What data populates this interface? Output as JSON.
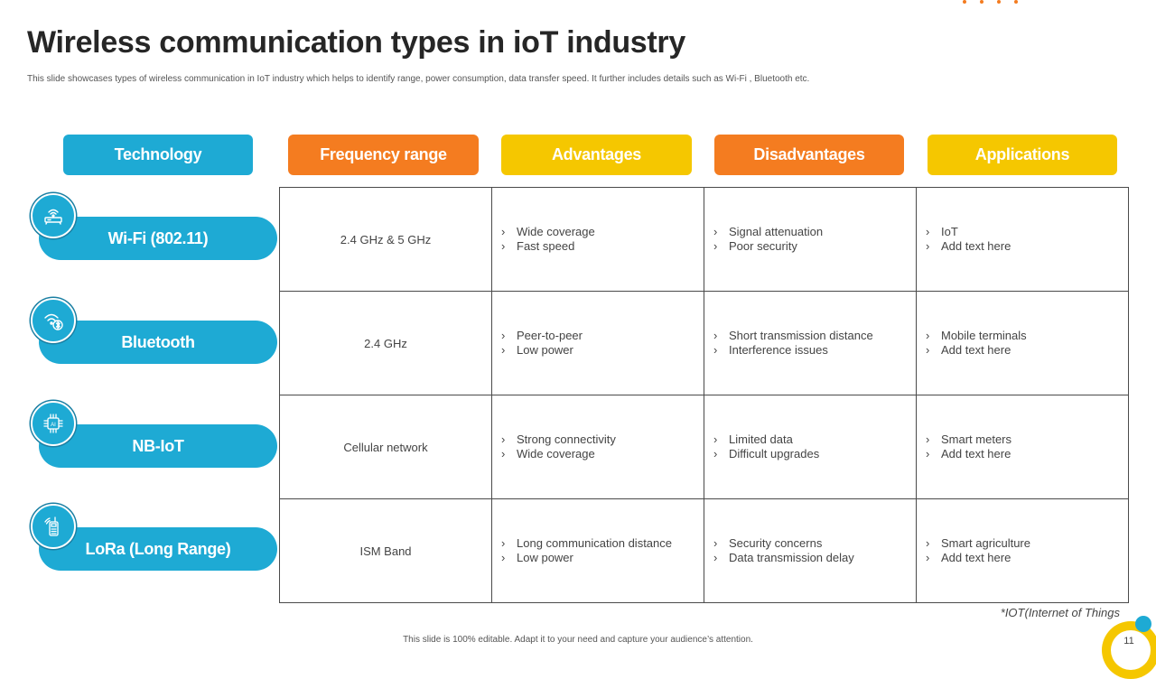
{
  "slide": {
    "title": "Wireless communication types in ioT industry",
    "subtitle": "This slide showcases types of wireless communication in IoT industry which helps to identify range, power consumption, data transfer speed. It further includes details such as Wi-Fi , Bluetooth etc.",
    "footnote": "*IOT(Internet of Things",
    "footer": "This slide is 100% editable.  Adapt it to your need and capture your audience’s attention.",
    "page_number": "11"
  },
  "colors": {
    "blue": "#1eaad4",
    "orange": "#f47c20",
    "yellow": "#f5c700"
  },
  "headers": [
    {
      "label": "Technology",
      "color": "blue"
    },
    {
      "label": "Frequency range",
      "color": "orange"
    },
    {
      "label": "Advantages",
      "color": "yellow"
    },
    {
      "label": "Disadvantages",
      "color": "orange"
    },
    {
      "label": "Applications",
      "color": "yellow"
    }
  ],
  "rows": [
    {
      "technology": "Wi-Fi (802.11)",
      "icon": "router-icon",
      "frequency": "2.4 GHz & 5 GHz",
      "advantages": [
        "Wide coverage",
        "Fast speed"
      ],
      "disadvantages": [
        "Signal attenuation",
        "Poor security"
      ],
      "applications": [
        "IoT",
        "Add text here"
      ]
    },
    {
      "technology": "Bluetooth",
      "icon": "bluetooth-icon",
      "frequency": "2.4 GHz",
      "advantages": [
        "Peer-to-peer",
        "Low power"
      ],
      "disadvantages": [
        "Short transmission distance",
        "Interference  issues"
      ],
      "applications": [
        "Mobile terminals",
        "Add text here"
      ]
    },
    {
      "technology": "NB-IoT",
      "icon": "ai-chip-icon",
      "frequency": "Cellular network",
      "advantages": [
        "Strong connectivity",
        "Wide coverage"
      ],
      "disadvantages": [
        "Limited data",
        "Difficult upgrades"
      ],
      "applications": [
        "Smart meters",
        "Add text here"
      ]
    },
    {
      "technology": "LoRa (Long Range)",
      "icon": "radio-device-icon",
      "frequency": "ISM Band",
      "advantages": [
        "Long communication distance",
        "Low power"
      ],
      "disadvantages": [
        "Security concerns",
        "Data transmission delay"
      ],
      "applications": [
        "Smart agriculture",
        "Add text here"
      ]
    }
  ]
}
